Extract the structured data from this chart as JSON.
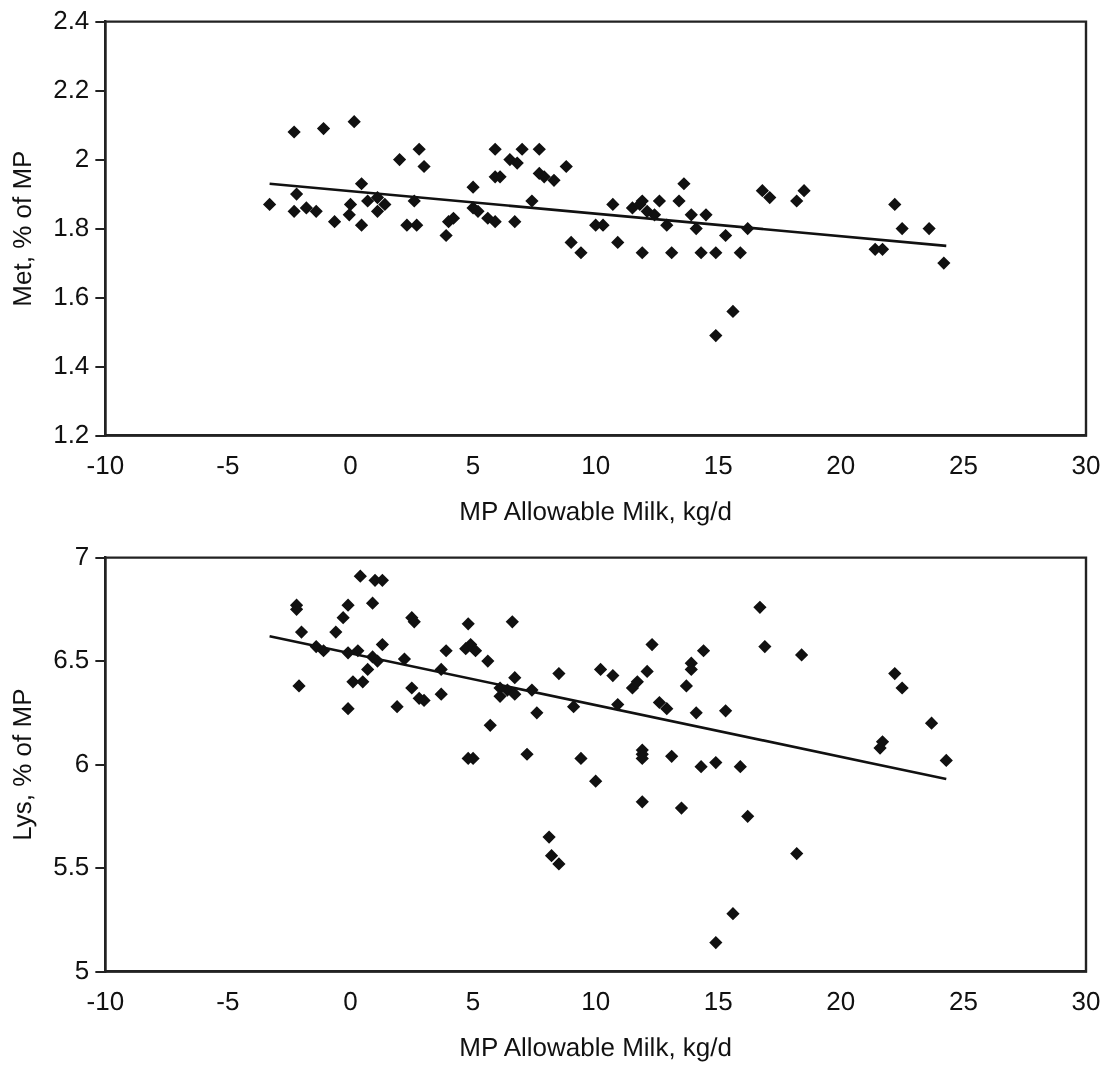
{
  "chart_data": [
    {
      "type": "scatter",
      "xlabel": "MP Allowable Milk, kg/d",
      "ylabel": "Met, % of MP",
      "xlim": [
        -10,
        30
      ],
      "xticks": [
        -10,
        -5,
        0,
        5,
        10,
        15,
        20,
        25,
        30
      ],
      "ylim": [
        1.2,
        2.4
      ],
      "yticks": [
        1.2,
        1.4,
        1.6,
        1.8,
        2,
        2.2,
        2.4
      ],
      "grid": false,
      "legend": false,
      "marker": "diamond",
      "series": [
        {
          "color": "#111111",
          "x": [
            -3.3,
            -2.3,
            -1.1,
            0.15,
            -2.2,
            -2.3,
            -1.8,
            -1.4,
            -0.65,
            0,
            -0.05,
            0.45,
            0.45,
            0.7,
            1.1,
            1.4,
            1.1,
            2.0,
            2.8,
            3.0,
            2.6,
            2.3,
            2.7,
            3.9,
            4.0,
            4.2,
            5,
            5,
            5.2,
            5.6,
            5.9,
            6.7,
            5.9,
            5.9,
            6.1,
            6.5,
            6.8,
            7.0,
            7.7,
            7.4,
            7.7,
            7.9,
            8.3,
            8.8,
            9.0,
            9.4,
            10,
            10.3,
            10.7,
            10.9,
            11.5,
            11.8,
            11.9,
            12.1,
            11.9,
            12.4,
            12.6,
            12.9,
            13.1,
            13.4,
            13.6,
            13.9,
            14.1,
            14.5,
            14.3,
            14.9,
            15.3,
            15.9,
            16.2,
            14.9,
            15.6,
            16.8,
            17.1,
            18.2,
            18.5,
            21.4,
            21.7,
            22.2,
            22.5,
            23.6,
            24.2
          ],
          "values": [
            1.87,
            2.08,
            2.09,
            2.11,
            1.9,
            1.85,
            1.86,
            1.85,
            1.82,
            1.87,
            1.84,
            1.81,
            1.93,
            1.88,
            1.89,
            1.87,
            1.85,
            2.0,
            2.03,
            1.98,
            1.88,
            1.81,
            1.81,
            1.78,
            1.82,
            1.83,
            1.92,
            1.86,
            1.85,
            1.83,
            1.82,
            1.82,
            2.03,
            1.95,
            1.95,
            2.0,
            1.99,
            2.03,
            2.03,
            1.88,
            1.96,
            1.95,
            1.94,
            1.98,
            1.76,
            1.73,
            1.81,
            1.81,
            1.87,
            1.76,
            1.86,
            1.87,
            1.88,
            1.85,
            1.73,
            1.84,
            1.88,
            1.81,
            1.73,
            1.88,
            1.93,
            1.84,
            1.8,
            1.84,
            1.73,
            1.73,
            1.78,
            1.73,
            1.8,
            1.49,
            1.56,
            1.91,
            1.89,
            1.88,
            1.91,
            1.74,
            1.74,
            1.87,
            1.8,
            1.8,
            1.7
          ]
        },
        {
          "type": "line",
          "color": "#111111",
          "marker": "none",
          "x": [
            -3.3,
            24.3
          ],
          "values": [
            1.93,
            1.75
          ]
        }
      ]
    },
    {
      "type": "scatter",
      "xlabel": "MP Allowable Milk, kg/d",
      "ylabel": "Lys, % of MP",
      "xlim": [
        -10,
        30
      ],
      "xticks": [
        -10,
        -5,
        0,
        5,
        10,
        15,
        20,
        25,
        30
      ],
      "ylim": [
        5,
        7
      ],
      "yticks": [
        5,
        5.5,
        6,
        6.5,
        7
      ],
      "grid": false,
      "legend": false,
      "marker": "diamond",
      "series": [
        {
          "color": "#111111",
          "x": [
            -2.2,
            -2.2,
            -2.0,
            -2.1,
            -1.4,
            -1.1,
            -0.6,
            -0.3,
            -0.1,
            -0.1,
            0.3,
            -0.1,
            0.1,
            0.5,
            0.4,
            1.0,
            1.3,
            0.9,
            0.9,
            1.1,
            0.7,
            1.3,
            1.9,
            2.2,
            2.5,
            2.6,
            2.5,
            2.8,
            3.0,
            3.7,
            3.7,
            3.9,
            4.8,
            4.9,
            5.1,
            4.7,
            4.8,
            5.0,
            5.6,
            6.1,
            6.4,
            6.7,
            6.1,
            5.7,
            6.6,
            6.7,
            7.2,
            7.4,
            7.6,
            8.5,
            8.2,
            8.1,
            8.5,
            9.1,
            9.4,
            10.0,
            10.2,
            10.7,
            10.9,
            11.5,
            11.7,
            11.9,
            11.9,
            11.9,
            11.9,
            12.1,
            12.3,
            12.6,
            12.9,
            13.1,
            13.5,
            13.7,
            13.9,
            13.9,
            14.4,
            14.1,
            14.3,
            14.9,
            15.3,
            15.9,
            16.2,
            16.7,
            16.9,
            14.9,
            15.6,
            18.2,
            18.4,
            21.6,
            21.7,
            22.2,
            22.5,
            23.7,
            24.3
          ],
          "values": [
            6.77,
            6.75,
            6.64,
            6.38,
            6.57,
            6.55,
            6.64,
            6.71,
            6.77,
            6.54,
            6.55,
            6.27,
            6.4,
            6.4,
            6.91,
            6.89,
            6.89,
            6.78,
            6.52,
            6.5,
            6.46,
            6.58,
            6.28,
            6.51,
            6.71,
            6.69,
            6.37,
            6.32,
            6.31,
            6.46,
            6.34,
            6.55,
            6.68,
            6.58,
            6.55,
            6.56,
            6.03,
            6.03,
            6.5,
            6.33,
            6.36,
            6.34,
            6.37,
            6.19,
            6.69,
            6.42,
            6.05,
            6.36,
            6.25,
            6.44,
            5.56,
            5.65,
            5.52,
            6.28,
            6.03,
            5.92,
            6.46,
            6.43,
            6.29,
            6.37,
            6.4,
            6.07,
            6.05,
            6.03,
            5.82,
            6.45,
            6.58,
            6.3,
            6.27,
            6.04,
            5.79,
            6.38,
            6.49,
            6.46,
            6.55,
            6.25,
            5.99,
            6.01,
            6.26,
            5.99,
            5.75,
            6.76,
            6.57,
            5.14,
            5.28,
            5.57,
            6.53,
            6.08,
            6.11,
            6.44,
            6.37,
            6.2,
            6.02
          ]
        },
        {
          "type": "line",
          "color": "#111111",
          "marker": "none",
          "x": [
            -3.3,
            24.3
          ],
          "values": [
            6.62,
            5.93
          ]
        }
      ]
    }
  ]
}
